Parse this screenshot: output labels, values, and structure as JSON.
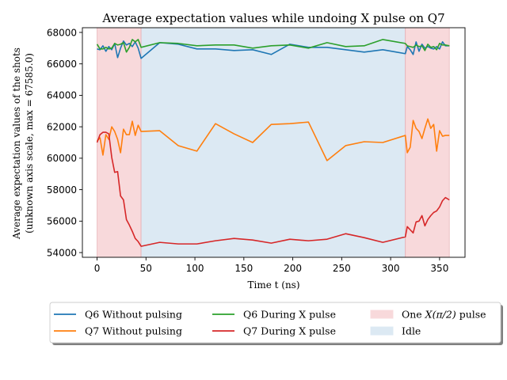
{
  "chart_data": {
    "type": "line",
    "title": "Average expectation values while undoing X pulse on Q7",
    "xlabel": "Time t (ns)",
    "ylabel_line1": "Average expectation values of the shots",
    "ylabel_line2": "(unknown axis scale, max = 67585.0)",
    "xlim": [
      -15,
      376
    ],
    "ylim": [
      53700,
      68300
    ],
    "xticks": [
      0,
      50,
      100,
      150,
      200,
      250,
      300,
      350
    ],
    "yticks": [
      54000,
      56000,
      58000,
      60000,
      62000,
      64000,
      66000,
      68000
    ],
    "regions": [
      {
        "name": "One $X(\\pi/2)$ pulse",
        "label_text": "One ",
        "label_math": "X(π/2)",
        "label_suffix": " pulse",
        "x0": 0,
        "x1": 45,
        "color": "#f8d9db"
      },
      {
        "name": "Idle",
        "x0": 45,
        "x1": 315,
        "color": "#dce9f3"
      },
      {
        "name": "",
        "x0": 315,
        "x1": 360,
        "color": "#f8d9db"
      }
    ],
    "series": [
      {
        "name": "Q6 Without pulsing",
        "color": "#1f77b4",
        "x": [
          0,
          3,
          6,
          9,
          12,
          15,
          18,
          21,
          24,
          27,
          30,
          33,
          36,
          39,
          42,
          45,
          64,
          83,
          102,
          121,
          140,
          159,
          178,
          197,
          216,
          235,
          254,
          273,
          292,
          315,
          317,
          320,
          323,
          326,
          329,
          332,
          335,
          338,
          341,
          344,
          347,
          350,
          353,
          356,
          360
        ],
        "y": [
          66950,
          66900,
          67150,
          66800,
          67100,
          66900,
          67300,
          66400,
          67000,
          67450,
          67200,
          67300,
          67100,
          67400,
          67000,
          66350,
          67350,
          67250,
          66950,
          66950,
          66850,
          66900,
          66600,
          67250,
          67050,
          67050,
          66900,
          66750,
          66900,
          66650,
          67100,
          66900,
          66600,
          67400,
          66800,
          67250,
          67000,
          67100,
          67000,
          66950,
          67100,
          66950,
          67400,
          67150,
          67150
        ]
      },
      {
        "name": "Q7 Without pulsing",
        "color": "#ff7f0e",
        "x": [
          0,
          3,
          6,
          9,
          12,
          15,
          18,
          21,
          24,
          27,
          30,
          33,
          36,
          39,
          42,
          45,
          64,
          83,
          102,
          121,
          140,
          159,
          178,
          197,
          216,
          235,
          254,
          273,
          292,
          315,
          317,
          320,
          323,
          326,
          329,
          332,
          335,
          338,
          341,
          344,
          347,
          350,
          353,
          356,
          360
        ],
        "y": [
          61100,
          61300,
          60200,
          61500,
          61200,
          62000,
          61700,
          61200,
          60350,
          61850,
          61500,
          61500,
          62350,
          61450,
          62100,
          61700,
          61750,
          60800,
          60450,
          62200,
          61550,
          61000,
          62150,
          62200,
          62300,
          59850,
          60800,
          61050,
          61000,
          61450,
          60350,
          60700,
          62400,
          61900,
          61700,
          61250,
          61900,
          62500,
          61900,
          62150,
          60450,
          61750,
          61400,
          61450,
          61450
        ]
      },
      {
        "name": "Q6 During X pulse",
        "color": "#2ca02c",
        "x": [
          0,
          3,
          6,
          9,
          12,
          15,
          18,
          21,
          24,
          27,
          30,
          33,
          36,
          39,
          42,
          45,
          64,
          83,
          102,
          121,
          140,
          159,
          178,
          197,
          216,
          235,
          254,
          273,
          292,
          315,
          317,
          320,
          323,
          326,
          329,
          332,
          335,
          338,
          341,
          344,
          347,
          350,
          353,
          356,
          360
        ],
        "y": [
          67250,
          66950,
          66950,
          67050,
          66950,
          67000,
          67300,
          67200,
          67250,
          67350,
          66750,
          67050,
          67550,
          67400,
          67550,
          67050,
          67350,
          67300,
          67150,
          67200,
          67200,
          67000,
          67150,
          67200,
          67000,
          67350,
          67100,
          67150,
          67550,
          67300,
          67150,
          67100,
          67050,
          67200,
          67100,
          67150,
          66850,
          67250,
          67050,
          67100,
          66900,
          67300,
          67200,
          67200,
          67150
        ]
      },
      {
        "name": "Q7 During X pulse",
        "color": "#d62728",
        "x": [
          0,
          3,
          6,
          9,
          12,
          15,
          18,
          21,
          24,
          27,
          30,
          33,
          36,
          39,
          42,
          45,
          64,
          83,
          102,
          121,
          140,
          159,
          178,
          197,
          216,
          235,
          254,
          273,
          292,
          315,
          317,
          320,
          323,
          326,
          329,
          332,
          335,
          338,
          341,
          344,
          347,
          350,
          353,
          356,
          360
        ],
        "y": [
          61000,
          61500,
          61650,
          61650,
          61550,
          60050,
          59100,
          59150,
          57600,
          57350,
          56100,
          55750,
          55350,
          54900,
          54700,
          54400,
          54650,
          54550,
          54550,
          54750,
          54900,
          54800,
          54600,
          54850,
          54750,
          54850,
          55200,
          54950,
          54650,
          55000,
          55650,
          55450,
          55250,
          55950,
          56000,
          56350,
          55700,
          56100,
          56350,
          56550,
          56650,
          56900,
          57300,
          57500,
          57350
        ]
      }
    ],
    "legend": {
      "placement": "below",
      "columns": 3
    }
  }
}
